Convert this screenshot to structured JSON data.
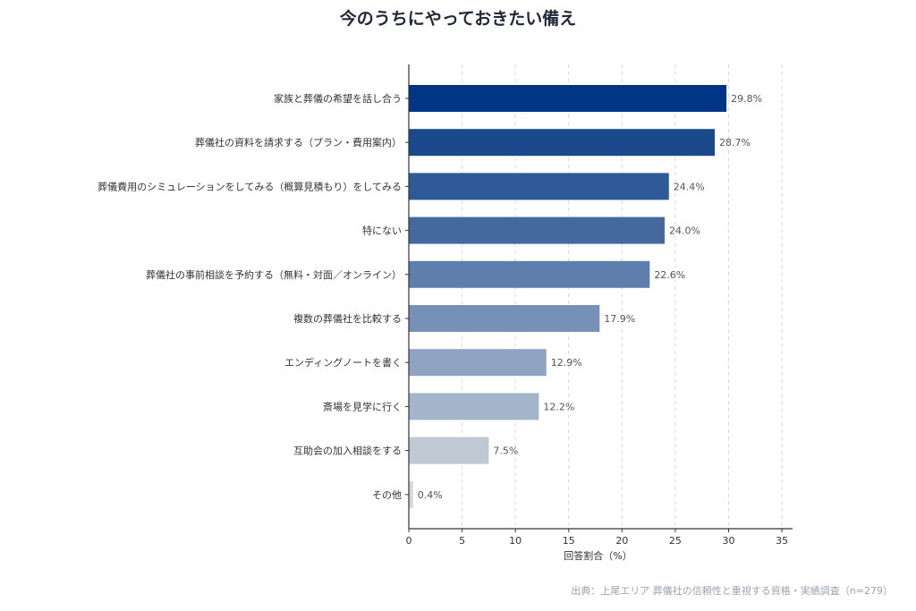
{
  "chart_data": {
    "type": "bar",
    "orientation": "horizontal",
    "title": "今のうちにやっておきたい備え",
    "categories": [
      "家族と葬儀の希望を話し合う",
      "葬儀社の資料を請求する（プラン・費用案内）",
      "葬儀費用のシミュレーションをしてみる（概算見積もり）をしてみる",
      "特にない",
      "葬儀社の事前相談を予約する（無料・対面／オンライン）",
      "複数の葬儀社を比較する",
      "エンディングノートを書く",
      "斎場を見学に行く",
      "互助会の加入相談をする",
      "その他"
    ],
    "values": [
      29.8,
      28.7,
      24.4,
      24.0,
      22.6,
      17.9,
      12.9,
      12.2,
      7.5,
      0.4
    ],
    "value_labels": [
      "29.8%",
      "28.7%",
      "24.4%",
      "24.0%",
      "22.6%",
      "17.9%",
      "12.9%",
      "12.2%",
      "7.5%",
      "0.4%"
    ],
    "colors": [
      "#003585",
      "#1a4a8c",
      "#2e5a98",
      "#44699f",
      "#5e7fae",
      "#7690b8",
      "#8ea4c2",
      "#a4b4cb",
      "#bfc8d3",
      "#d7d7d7"
    ],
    "xlabel": "回答割合（%）",
    "ylabel": "",
    "xlim": [
      0,
      36
    ],
    "xticks": [
      0,
      5,
      10,
      15,
      20,
      25,
      30,
      35
    ],
    "grid": "vertical-dashed"
  },
  "source_note": "出典：上尾エリア 葬儀社の信頼性と重視する資格・実績調査（n=279）"
}
